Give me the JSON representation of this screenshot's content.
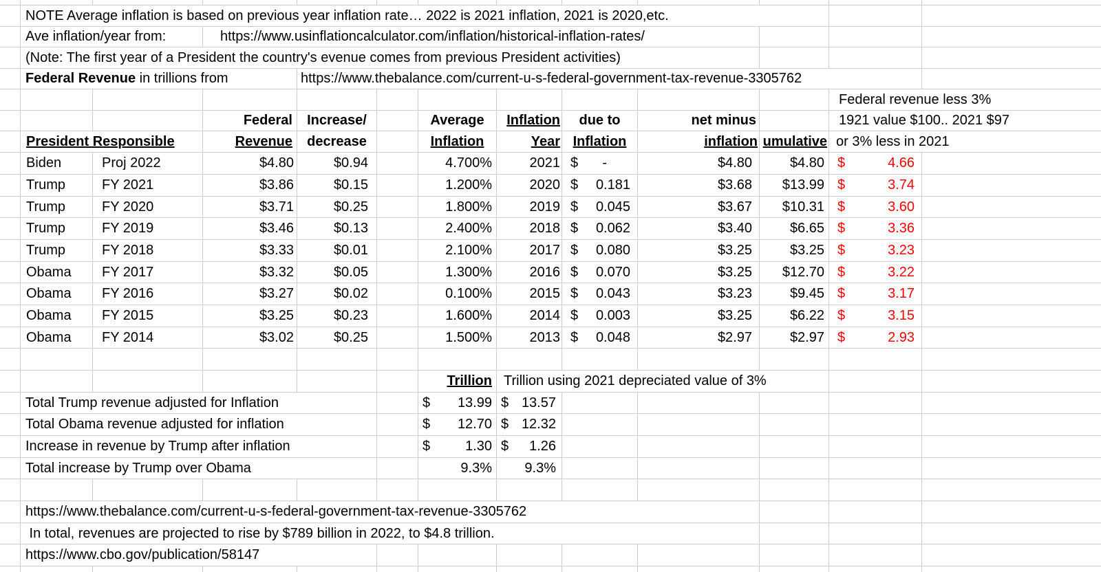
{
  "symbols": {
    "dollar": "$"
  },
  "colors": {
    "accent_red": "#f40100",
    "gridline": "#cdcdcd"
  },
  "notes": {
    "row1": "NOTE Average inflation is based on previous year inflation rate… 2022 is 2021 inflation, 2021 is 2020,etc.",
    "ave_label": "Ave inflation/year from:",
    "ave_url": "https://www.usinflationcalculator.com/inflation/historical-inflation-rates/",
    "row3": "(Note: The first year of a President the country's evenue comes from previous President activities)",
    "fed_bold": "Federal Revenue",
    "fed_rest": " in trillions from",
    "fed_url": "https://www.thebalance.com/current-u-s-federal-government-tax-revenue-3305762"
  },
  "table": {
    "headers": {
      "federal": "Federal",
      "increase": "Increase/",
      "average": "Average",
      "inflation_top": "Inflation",
      "due_to": "due to",
      "net_minus": "net minus",
      "president": "President Responsible",
      "revenue": "Revenue",
      "decrease": "decrease",
      "inflation_g": "Inflation",
      "year": "Year",
      "inflation_i": "Inflation",
      "inflation_j": "inflation",
      "cumulative": "umulative",
      "right_note_1": "Federal revenue less 3%",
      "right_note_2": "1921 value $100.. 2021 $97",
      "right_note_3": "or 3% less in 2021"
    },
    "rows": [
      {
        "president": "Biden",
        "fiscal_year": "Proj 2022",
        "federal_revenue": "$4.80",
        "change": "$0.94",
        "avg_inflation": "4.700%",
        "inflation_year": "2021",
        "due_to_inflation": "-",
        "net_minus_inflation": "$4.80",
        "cumulative": "$4.80",
        "less_3pct": "4.66"
      },
      {
        "president": "Trump",
        "fiscal_year": "FY 2021",
        "federal_revenue": "$3.86",
        "change": "$0.15",
        "avg_inflation": "1.200%",
        "inflation_year": "2020",
        "due_to_inflation": "0.181",
        "net_minus_inflation": "$3.68",
        "cumulative": "$13.99",
        "less_3pct": "3.74"
      },
      {
        "president": "Trump",
        "fiscal_year": "FY 2020",
        "federal_revenue": "$3.71",
        "change": "$0.25",
        "avg_inflation": "1.800%",
        "inflation_year": "2019",
        "due_to_inflation": "0.045",
        "net_minus_inflation": "$3.67",
        "cumulative": "$10.31",
        "less_3pct": "3.60"
      },
      {
        "president": "Trump",
        "fiscal_year": "FY 2019",
        "federal_revenue": "$3.46",
        "change": "$0.13",
        "avg_inflation": "2.400%",
        "inflation_year": "2018",
        "due_to_inflation": "0.062",
        "net_minus_inflation": "$3.40",
        "cumulative": "$6.65",
        "less_3pct": "3.36"
      },
      {
        "president": "Trump",
        "fiscal_year": "FY 2018",
        "federal_revenue": "$3.33",
        "change": "$0.01",
        "avg_inflation": "2.100%",
        "inflation_year": "2017",
        "due_to_inflation": "0.080",
        "net_minus_inflation": "$3.25",
        "cumulative": "$3.25",
        "less_3pct": "3.23"
      },
      {
        "president": "Obama",
        "fiscal_year": "FY 2017",
        "federal_revenue": "$3.32",
        "change": "$0.05",
        "avg_inflation": "1.300%",
        "inflation_year": "2016",
        "due_to_inflation": "0.070",
        "net_minus_inflation": "$3.25",
        "cumulative": "$12.70",
        "less_3pct": "3.22"
      },
      {
        "president": "Obama",
        "fiscal_year": "FY 2016",
        "federal_revenue": "$3.27",
        "change": "$0.02",
        "avg_inflation": "0.100%",
        "inflation_year": "2015",
        "due_to_inflation": "0.043",
        "net_minus_inflation": "$3.23",
        "cumulative": "$9.45",
        "less_3pct": "3.17"
      },
      {
        "president": "Obama",
        "fiscal_year": "FY 2015",
        "federal_revenue": "$3.25",
        "change": "$0.23",
        "avg_inflation": "1.600%",
        "inflation_year": "2014",
        "due_to_inflation": "0.003",
        "net_minus_inflation": "$3.25",
        "cumulative": "$6.22",
        "less_3pct": "3.15"
      },
      {
        "president": "Obama",
        "fiscal_year": "FY 2014",
        "federal_revenue": "$3.02",
        "change": "$0.25",
        "avg_inflation": "1.500%",
        "inflation_year": "2013",
        "due_to_inflation": "0.048",
        "net_minus_inflation": "$2.97",
        "cumulative": "$2.97",
        "less_3pct": "2.93"
      }
    ]
  },
  "summary": {
    "trillion_label": "Trillion",
    "trillion_note": "Trillion using 2021 depreciated value of 3%",
    "rows": [
      {
        "label": "Total Trump revenue adjusted for Inflation",
        "v1": "13.99",
        "v2": "13.57"
      },
      {
        "label": "Total Obama revenue adjusted for inflation",
        "v1": "12.70",
        "v2": "12.32"
      },
      {
        "label": "Increase in revenue by Trump after inflation",
        "v1": "1.30",
        "v2": "1.26"
      },
      {
        "label": "Total increase by Trump over Obama",
        "v1": "9.3%",
        "v2": "9.3%"
      }
    ]
  },
  "footer": {
    "url1": "https://www.thebalance.com/current-u-s-federal-government-tax-revenue-3305762",
    "note": " In total, revenues are projected to rise by $789 billion in 2022, to $4.8 trillion.",
    "url2": "https://www.cbo.gov/publication/58147"
  }
}
